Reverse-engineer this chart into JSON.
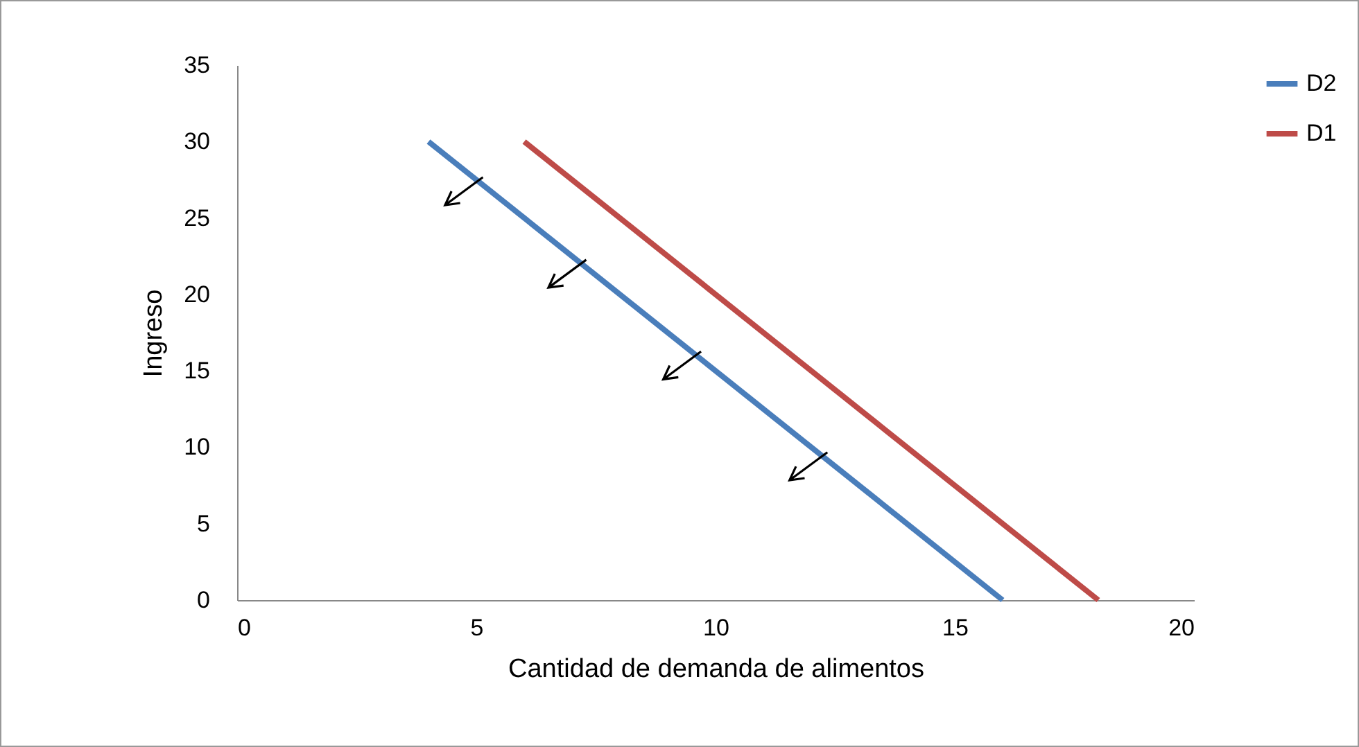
{
  "chart_data": {
    "type": "line",
    "xlabel": "Cantidad de demanda de  alimentos",
    "ylabel": "Ingreso",
    "series": [
      {
        "name": "D2",
        "color": "#4a7ebb",
        "x": [
          4,
          16
        ],
        "values": [
          30,
          0
        ]
      },
      {
        "name": "D1",
        "color": "#be4b48",
        "x": [
          6,
          18
        ],
        "values": [
          30,
          0
        ]
      }
    ],
    "xlim": [
      0,
      20
    ],
    "xticks": [
      0,
      5,
      10,
      15,
      20
    ],
    "ylim": [
      0,
      35
    ],
    "yticks": [
      0,
      5,
      10,
      15,
      20,
      25,
      30,
      35
    ],
    "grid": false,
    "legend": "right",
    "marker": "none",
    "line_style": "solid"
  }
}
